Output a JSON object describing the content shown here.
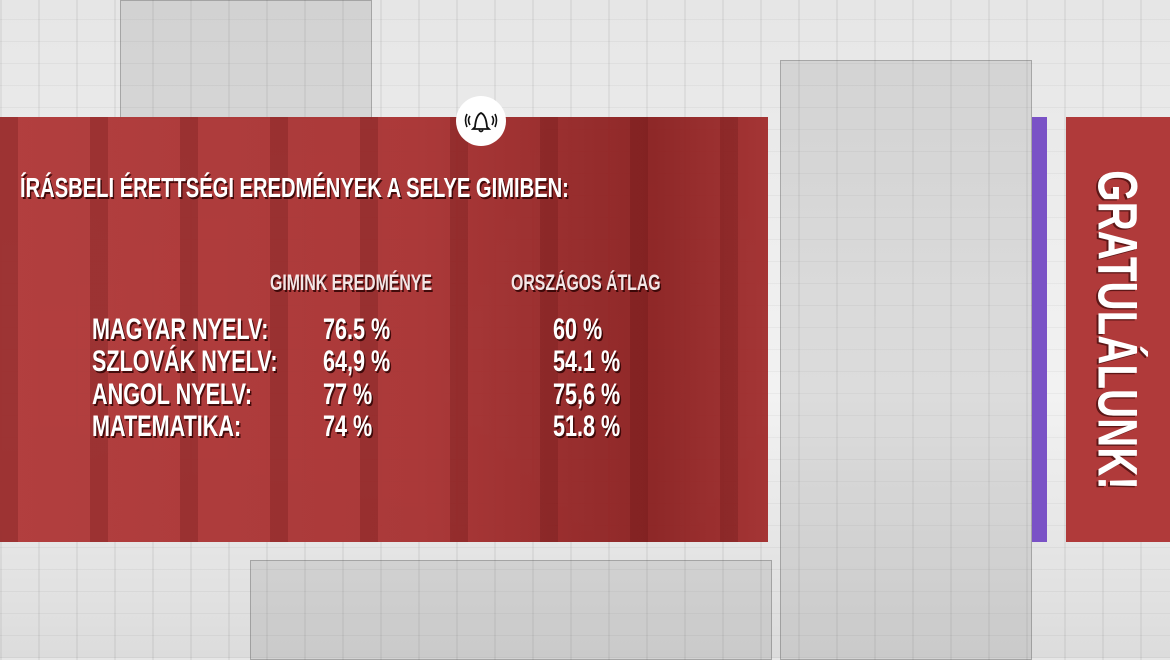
{
  "title": "ÍRÁSBELI ÉRETTSÉGI EREDMÉNYEK A SELYE GIMIBEN:",
  "columns": [
    "GIMINK EREDMÉNYE",
    "ORSZÁGOS ÁTLAG"
  ],
  "rows": [
    {
      "subject": "MAGYAR NYELV:",
      "school": "76.5 %",
      "national": "60 %"
    },
    {
      "subject": "SZLOVÁK NYELV:",
      "school": "64,9 %",
      "national": "54.1 %"
    },
    {
      "subject": "ANGOL NYELV:",
      "school": "77 %",
      "national": "75,6 %"
    },
    {
      "subject": "MATEMATIKA:",
      "school": "74 %",
      "national": "51.8 %"
    }
  ],
  "side_text": "GRATULÁLUNK!",
  "icon": "bell-ringing-icon",
  "colors": {
    "panel": "#a93434",
    "accent": "#7a52c6",
    "side_panel": "#b03a3a"
  }
}
